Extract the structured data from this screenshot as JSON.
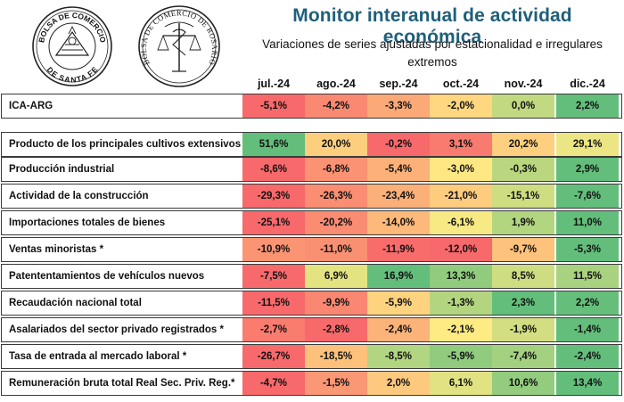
{
  "header": {
    "title": "Monitor interanual de actividad económica",
    "subtitle": "Variaciones de series ajustadas por estacionalidad e irregulares extremos",
    "logos": {
      "bcsf": {
        "top_text": "BOLSA DE COMERCIO",
        "bottom_text": "DE SANTA FE"
      },
      "bcr": {
        "text": "BOLSA DE COMERCIO DE ROSARIO"
      }
    }
  },
  "chart_data": {
    "type": "table",
    "columns": [
      "jul.-24",
      "ago.-24",
      "sep.-24",
      "oct.-24",
      "nov.-24",
      "dic.-24"
    ],
    "rows": [
      {
        "label": "ICA-ARG",
        "values": [
          -5.1,
          -4.2,
          -3.3,
          -2.0,
          0.0,
          2.2
        ],
        "display": [
          "-5,1%",
          "-4,2%",
          "-3,3%",
          "-2,0%",
          "0,0%",
          "2,2%"
        ]
      },
      {
        "label": "Producto de los principales cultivos extensivos",
        "values": [
          51.6,
          20.0,
          -0.2,
          3.1,
          20.2,
          29.1
        ],
        "display": [
          "51,6%",
          "20,0%",
          "-0,2%",
          "3,1%",
          "20,2%",
          "29,1%"
        ]
      },
      {
        "label": "Producción industrial",
        "values": [
          -8.6,
          -6.8,
          -5.4,
          -3.0,
          -0.3,
          2.9
        ],
        "display": [
          "-8,6%",
          "-6,8%",
          "-5,4%",
          "-3,0%",
          "-0,3%",
          "2,9%"
        ]
      },
      {
        "label": "Actividad de la construcción",
        "values": [
          -29.3,
          -26.3,
          -23.4,
          -21.0,
          -15.1,
          -7.6
        ],
        "display": [
          "-29,3%",
          "-26,3%",
          "-23,4%",
          "-21,0%",
          "-15,1%",
          "-7,6%"
        ]
      },
      {
        "label": "Importaciones totales de bienes",
        "values": [
          -25.1,
          -20.2,
          -14.0,
          -6.1,
          1.9,
          11.0
        ],
        "display": [
          "-25,1%",
          "-20,2%",
          "-14,0%",
          "-6,1%",
          "1,9%",
          "11,0%"
        ]
      },
      {
        "label": "Ventas minoristas *",
        "values": [
          -10.9,
          -11.0,
          -11.9,
          -12.0,
          -9.7,
          -5.3
        ],
        "display": [
          "-10,9%",
          "-11,0%",
          "-11,9%",
          "-12,0%",
          "-9,7%",
          "-5,3%"
        ]
      },
      {
        "label": "Patententamientos de vehículos nuevos",
        "values": [
          -7.5,
          6.9,
          16.9,
          13.3,
          8.5,
          11.5
        ],
        "display": [
          "-7,5%",
          "6,9%",
          "16,9%",
          "13,3%",
          "8,5%",
          "11,5%"
        ]
      },
      {
        "label": "Recaudación nacional total",
        "values": [
          -11.5,
          -9.9,
          -5.9,
          -1.3,
          2.3,
          2.2
        ],
        "display": [
          "-11,5%",
          "-9,9%",
          "-5,9%",
          "-1,3%",
          "2,3%",
          "2,2%"
        ]
      },
      {
        "label": "Asalariados del sector privado registrados *",
        "values": [
          -2.7,
          -2.8,
          -2.4,
          -2.1,
          -1.9,
          -1.4
        ],
        "display": [
          "-2,7%",
          "-2,8%",
          "-2,4%",
          "-2,1%",
          "-1,9%",
          "-1,4%"
        ]
      },
      {
        "label": "Tasa de entrada al mercado laboral *",
        "values": [
          -26.7,
          -18.5,
          -8.5,
          -5.9,
          -7.4,
          -2.4
        ],
        "display": [
          "-26,7%",
          "-18,5%",
          "-8,5%",
          "-5,9%",
          "-7,4%",
          "-2,4%"
        ]
      },
      {
        "label": "Remuneración bruta total Real Sec. Priv. Reg.*",
        "values": [
          -4.7,
          -1.5,
          2.0,
          6.1,
          10.6,
          13.4
        ],
        "display": [
          "-4,7%",
          "-1,5%",
          "2,0%",
          "6,1%",
          "10,6%",
          "13,4%"
        ]
      }
    ],
    "colors": {
      "min": "#f8696b",
      "mid": "#ffeb84",
      "max": "#63be7b",
      "neutral": "#fcfcff"
    }
  }
}
